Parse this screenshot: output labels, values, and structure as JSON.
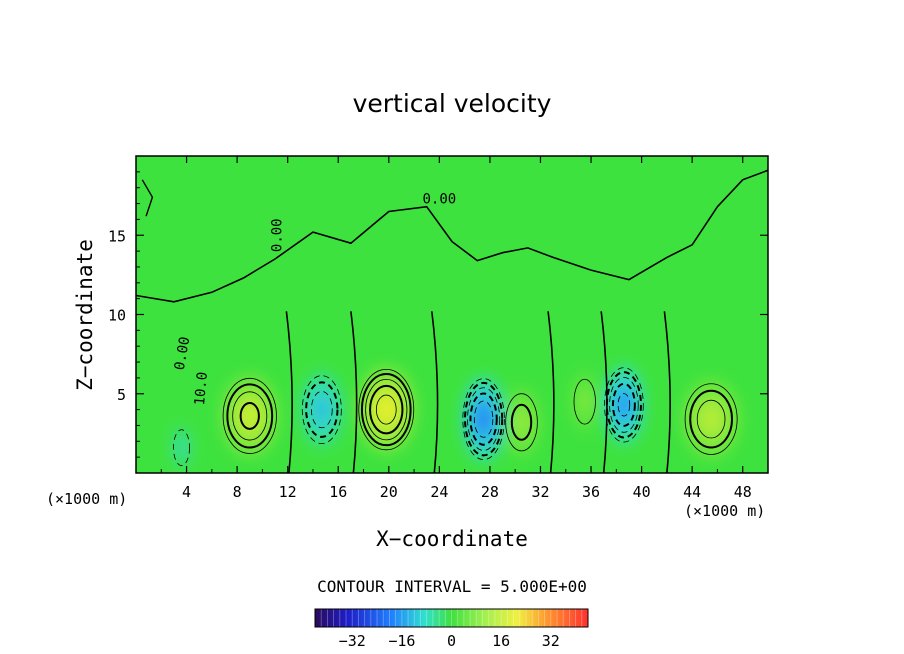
{
  "chart_data": {
    "type": "heatmap",
    "title": "vertical velocity",
    "xlabel": "X−coordinate",
    "ylabel": "Z−coordinate",
    "x_unit_label": "(×1000 m)",
    "y_unit_label": "(×1000 m)",
    "xlim": [
      0,
      50
    ],
    "ylim": [
      0,
      20
    ],
    "xticks": [
      4,
      8,
      12,
      16,
      20,
      24,
      28,
      32,
      36,
      40,
      44,
      48
    ],
    "xtick_labels": [
      "4",
      "8",
      "12",
      "16",
      "20",
      "24",
      "28",
      "32",
      "36",
      "40",
      "44",
      "48"
    ],
    "yticks": [
      5,
      10,
      15
    ],
    "ytick_labels": [
      "5",
      "10",
      "15"
    ],
    "contour_labels": [
      {
        "text": "0.00",
        "x": 11.5,
        "z": 15.0
      },
      {
        "text": "0.00",
        "x": 24.0,
        "z": 17.0
      },
      {
        "text": "0.00",
        "x": 4.0,
        "z": 7.5
      },
      {
        "text": "10.0",
        "x": 5.5,
        "z": 5.3
      }
    ],
    "interval_text": "CONTOUR INTERVAL = 5.000E+00",
    "colorbar": {
      "min": -44,
      "max": 44,
      "ticks": [
        -32,
        -16,
        0,
        16,
        32
      ],
      "tick_labels": [
        "−32",
        "−16",
        "0",
        "16",
        "32"
      ],
      "colormap": "blue-cyan-green-yellow-red"
    },
    "cells": [
      {
        "x": 9,
        "z": 3.6,
        "w": 22,
        "sx": 2.4,
        "sz": 2.7
      },
      {
        "x": 19.8,
        "z": 4.0,
        "w": 28,
        "sx": 2.4,
        "sz": 2.8
      },
      {
        "x": 30.5,
        "z": 3.2,
        "w": 13,
        "sx": 1.6,
        "sz": 2.3
      },
      {
        "x": 35.5,
        "z": 4.5,
        "w": 10,
        "sx": 1.2,
        "sz": 2.0
      },
      {
        "x": 45.5,
        "z": 3.4,
        "w": 19,
        "sx": 2.4,
        "sz": 2.6
      },
      {
        "x": 14.7,
        "z": 4.0,
        "w": -19,
        "sx": 1.8,
        "sz": 2.5
      },
      {
        "x": 27.5,
        "z": 3.4,
        "w": -30,
        "sx": 1.8,
        "sz": 2.8
      },
      {
        "x": 38.6,
        "z": 4.3,
        "w": -27,
        "sx": 1.7,
        "sz": 2.6
      },
      {
        "x": 3.6,
        "z": 1.6,
        "w": -10,
        "sx": 0.9,
        "sz": 1.6
      }
    ]
  }
}
